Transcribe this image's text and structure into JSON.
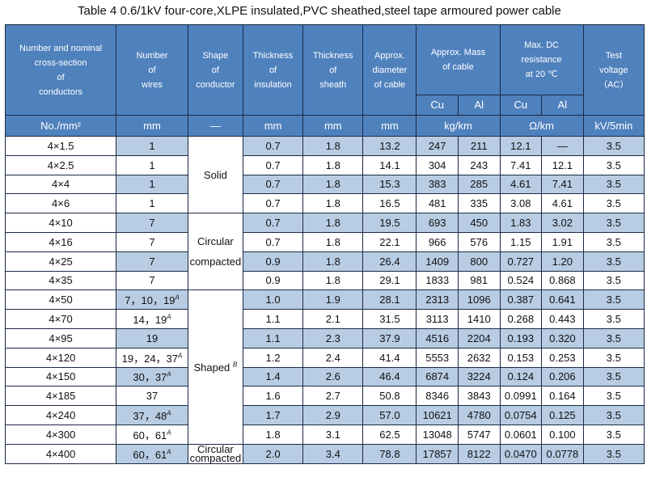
{
  "title": "Table 4    0.6/1kV four-core,XLPE insulated,PVC sheathed,steel tape armoured power cable",
  "headers": {
    "conductor": [
      "Number and nominal",
      "cross-section",
      "of",
      "conductors"
    ],
    "wires": [
      "Number",
      "of",
      "wires"
    ],
    "shape": [
      "Shape",
      "of",
      "conductor"
    ],
    "insulation": [
      "Thickness",
      "of",
      "insulation"
    ],
    "sheath": [
      "Thickness",
      "of",
      "sheath"
    ],
    "diameter": [
      "Approx.",
      "diameter",
      "of cable"
    ],
    "mass": [
      "Approx. Mass",
      "of cable"
    ],
    "resistance": [
      "Max. DC",
      "resistance",
      "at 20 ℃"
    ],
    "test": [
      "Test",
      "voltage",
      "（AC）"
    ],
    "cu": "Cu",
    "al": "Al"
  },
  "units": {
    "conductor": "No./mm²",
    "wires": "mm",
    "shape": "—",
    "insulation": "mm",
    "sheath": "mm",
    "diameter": "mm",
    "mass": "kg/km",
    "resistance": "Ω/km",
    "test": "kV/5min"
  },
  "shapes": {
    "solid": "Solid",
    "circular1": "Circular",
    "circular2": "compacted",
    "shaped": "Shaped",
    "shaped_note": "B",
    "last1": "Circular",
    "last2": "compacted"
  },
  "rows": [
    {
      "size": "4×1.5",
      "wires": "1",
      "ins": "0.7",
      "sh": "1.8",
      "dia": "13.2",
      "mcu": "247",
      "mal": "211",
      "rcu": "12.1",
      "ral": "—",
      "tv": "3.5"
    },
    {
      "size": "4×2.5",
      "wires": "1",
      "ins": "0.7",
      "sh": "1.8",
      "dia": "14.1",
      "mcu": "304",
      "mal": "243",
      "rcu": "7.41",
      "ral": "12.1",
      "tv": "3.5"
    },
    {
      "size": "4×4",
      "wires": "1",
      "ins": "0.7",
      "sh": "1.8",
      "dia": "15.3",
      "mcu": "383",
      "mal": "285",
      "rcu": "4.61",
      "ral": "7.41",
      "tv": "3.5"
    },
    {
      "size": "4×6",
      "wires": "1",
      "ins": "0.7",
      "sh": "1.8",
      "dia": "16.5",
      "mcu": "481",
      "mal": "335",
      "rcu": "3.08",
      "ral": "4.61",
      "tv": "3.5"
    },
    {
      "size": "4×10",
      "wires": "7",
      "ins": "0.7",
      "sh": "1.8",
      "dia": "19.5",
      "mcu": "693",
      "mal": "450",
      "rcu": "1.83",
      "ral": "3.02",
      "tv": "3.5"
    },
    {
      "size": "4×16",
      "wires": "7",
      "ins": "0.7",
      "sh": "1.8",
      "dia": "22.1",
      "mcu": "966",
      "mal": "576",
      "rcu": "1.15",
      "ral": "1.91",
      "tv": "3.5"
    },
    {
      "size": "4×25",
      "wires": "7",
      "ins": "0.9",
      "sh": "1.8",
      "dia": "26.4",
      "mcu": "1409",
      "mal": "800",
      "rcu": "0.727",
      "ral": "1.20",
      "tv": "3.5"
    },
    {
      "size": "4×35",
      "wires": "7",
      "ins": "0.9",
      "sh": "1.8",
      "dia": "29.1",
      "mcu": "1833",
      "mal": "981",
      "rcu": "0.524",
      "ral": "0.868",
      "tv": "3.5"
    },
    {
      "size": "4×50",
      "wires": "7，10，19",
      "note": "A",
      "ins": "1.0",
      "sh": "1.9",
      "dia": "28.1",
      "mcu": "2313",
      "mal": "1096",
      "rcu": "0.387",
      "ral": "0.641",
      "tv": "3.5"
    },
    {
      "size": "4×70",
      "wires": "14，19",
      "note": "A",
      "ins": "1.1",
      "sh": "2.1",
      "dia": "31.5",
      "mcu": "3113",
      "mal": "1410",
      "rcu": "0.268",
      "ral": "0.443",
      "tv": "3.5"
    },
    {
      "size": "4×95",
      "wires": "19",
      "ins": "1.1",
      "sh": "2.3",
      "dia": "37.9",
      "mcu": "4516",
      "mal": "2204",
      "rcu": "0.193",
      "ral": "0.320",
      "tv": "3.5"
    },
    {
      "size": "4×120",
      "wires": "19，24，37",
      "note": "A",
      "ins": "1.2",
      "sh": "2.4",
      "dia": "41.4",
      "mcu": "5553",
      "mal": "2632",
      "rcu": "0.153",
      "ral": "0.253",
      "tv": "3.5"
    },
    {
      "size": "4×150",
      "wires": "30，37",
      "note": "A",
      "ins": "1.4",
      "sh": "2.6",
      "dia": "46.4",
      "mcu": "6874",
      "mal": "3224",
      "rcu": "0.124",
      "ral": "0.206",
      "tv": "3.5"
    },
    {
      "size": "4×185",
      "wires": "37",
      "ins": "1.6",
      "sh": "2.7",
      "dia": "50.8",
      "mcu": "8346",
      "mal": "3843",
      "rcu": "0.0991",
      "ral": "0.164",
      "tv": "3.5"
    },
    {
      "size": "4×240",
      "wires": "37，48",
      "note": "A",
      "ins": "1.7",
      "sh": "2.9",
      "dia": "57.0",
      "mcu": "10621",
      "mal": "4780",
      "rcu": "0.0754",
      "ral": "0.125",
      "tv": "3.5"
    },
    {
      "size": "4×300",
      "wires": "60，61",
      "note": "A",
      "ins": "1.8",
      "sh": "3.1",
      "dia": "62.5",
      "mcu": "13048",
      "mal": "5747",
      "rcu": "0.0601",
      "ral": "0.100",
      "tv": "3.5"
    },
    {
      "size": "4×400",
      "wires": "60，61",
      "note": "A",
      "ins": "2.0",
      "sh": "3.4",
      "dia": "78.8",
      "mcu": "17857",
      "mal": "8122",
      "rcu": "0.0470",
      "ral": "0.0778",
      "tv": "3.5"
    }
  ]
}
